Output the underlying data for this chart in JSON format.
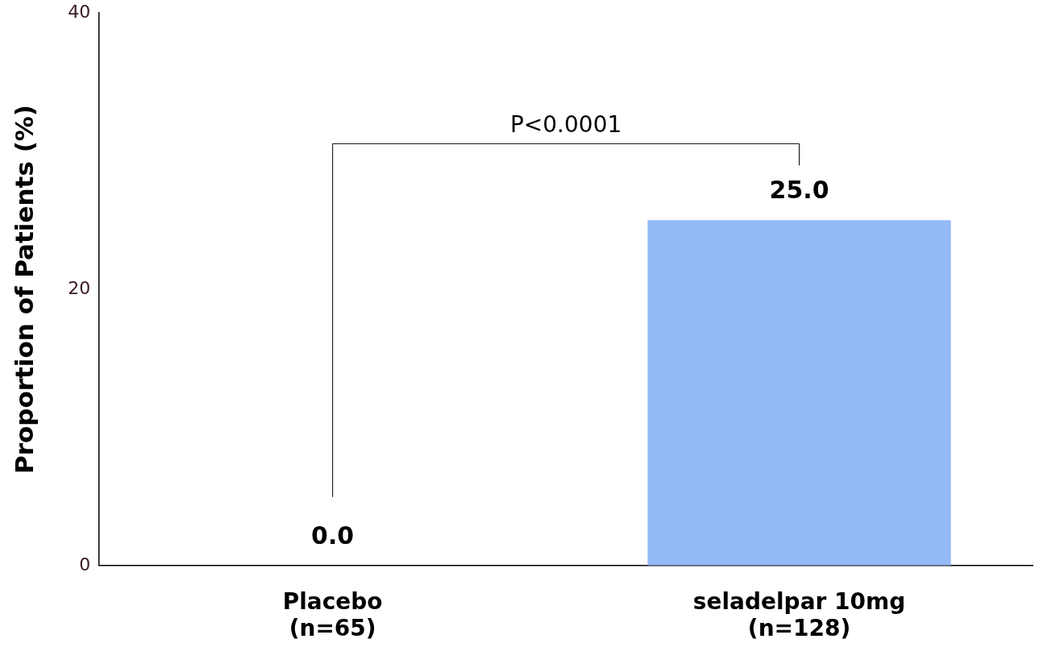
{
  "chart_data": {
    "type": "bar",
    "ylabel": "Proportion of Patients (%)",
    "categories": [
      "Placebo\n(n=65)",
      "seladelpar 10mg\n(n=128)"
    ],
    "values": [
      0.0,
      25.0
    ],
    "value_labels": [
      "0.0",
      "25.0"
    ],
    "color": "#95bbf7",
    "ylim": [
      0,
      40
    ],
    "yticks": [
      0,
      20,
      40
    ],
    "grid": false,
    "annotations": [
      "P<0.0001"
    ]
  }
}
